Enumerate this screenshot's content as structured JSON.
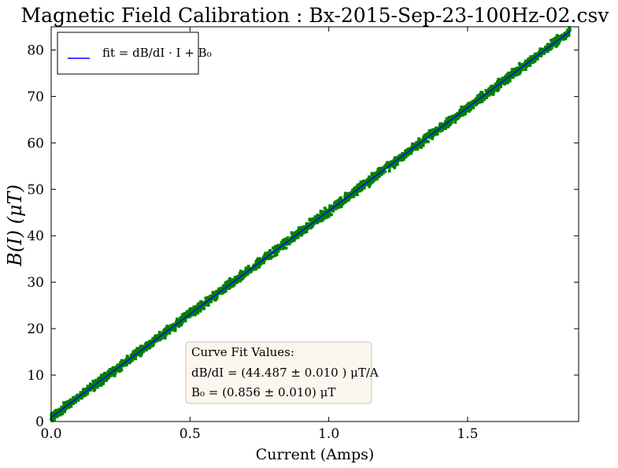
{
  "chart_data": {
    "type": "scatter",
    "title": "Magnetic Field Calibration : Bx-2015-Sep-23-100Hz-02.csv",
    "xlabel": "Current (Amps)",
    "ylabel": "B(I)  (μT)",
    "xlim": [
      0,
      1.9
    ],
    "ylim": [
      0,
      85
    ],
    "x_ticks": [
      "0.0",
      "0.5",
      "1.0",
      "1.5"
    ],
    "x_tick_values": [
      0,
      0.5,
      1.0,
      1.5
    ],
    "y_ticks": [
      "0",
      "10",
      "20",
      "30",
      "40",
      "50",
      "60",
      "70",
      "80"
    ],
    "y_tick_values": [
      0,
      10,
      20,
      30,
      40,
      50,
      60,
      70,
      80
    ],
    "grid": false,
    "legend": {
      "position": "top-left",
      "entries": [
        {
          "label": "fit = dB/dI · I + B₀",
          "color": "#0000ff"
        }
      ]
    },
    "series": [
      {
        "type": "scatter",
        "color": "#008000",
        "x_range": [
          0.0,
          1.87
        ],
        "spread": 0.6
      },
      {
        "type": "line",
        "label": "fit",
        "color": "#0000ff",
        "slope": 44.487,
        "intercept": 0.856,
        "x_range": [
          0.0,
          1.87
        ]
      }
    ],
    "annotation": {
      "heading": "Curve Fit Values:",
      "line1": "dB/dI = (44.487 ± 0.010 ) μT/A",
      "line2": "B₀ = (0.856 ± 0.010) μT"
    }
  },
  "colors": {
    "scatter": "#008000",
    "fit_line": "#0000ff",
    "annotation_bg": "#fbf6ee",
    "annotation_border": "#c8c2b8"
  }
}
